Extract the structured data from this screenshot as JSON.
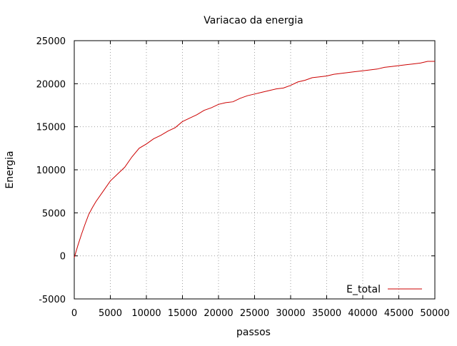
{
  "chart_data": {
    "type": "line",
    "title": "Variacao da energia",
    "xlabel": "passos",
    "ylabel": "Energia",
    "xlim": [
      0,
      50000
    ],
    "ylim": [
      -5000,
      25000
    ],
    "x_ticks": [
      "0",
      "5000",
      "10000",
      "15000",
      "20000",
      "25000",
      "30000",
      "35000",
      "40000",
      "45000",
      "50000"
    ],
    "y_ticks": [
      "-5000",
      "0",
      "5000",
      "10000",
      "15000",
      "20000",
      "25000"
    ],
    "grid": true,
    "legend_position": "bottom-right",
    "series": [
      {
        "name": "E_total",
        "color": "#cc0000",
        "x": [
          0,
          500,
          1000,
          1500,
          2000,
          2500,
          3000,
          4000,
          5000,
          6000,
          7000,
          8000,
          9000,
          10000,
          11000,
          12000,
          13000,
          14000,
          15000,
          16000,
          17000,
          18000,
          19000,
          20000,
          21000,
          22000,
          23000,
          24000,
          25000,
          26000,
          27000,
          28000,
          29000,
          30000,
          31000,
          32000,
          33000,
          34000,
          35000,
          36000,
          37000,
          38000,
          39000,
          40000,
          41000,
          42000,
          43000,
          44000,
          45000,
          46000,
          47000,
          48000,
          49000,
          50000
        ],
        "y": [
          -200,
          1200,
          2500,
          3700,
          4800,
          5600,
          6300,
          7500,
          8700,
          9500,
          10300,
          11500,
          12500,
          13000,
          13600,
          14000,
          14500,
          14900,
          15600,
          16000,
          16400,
          16900,
          17200,
          17600,
          17800,
          17900,
          18300,
          18600,
          18800,
          19000,
          19200,
          19400,
          19500,
          19800,
          20200,
          20400,
          20700,
          20800,
          20900,
          21100,
          21200,
          21300,
          21400,
          21500,
          21600,
          21700,
          21900,
          22000,
          22100,
          22200,
          22300,
          22400,
          22600,
          22600
        ]
      }
    ]
  }
}
